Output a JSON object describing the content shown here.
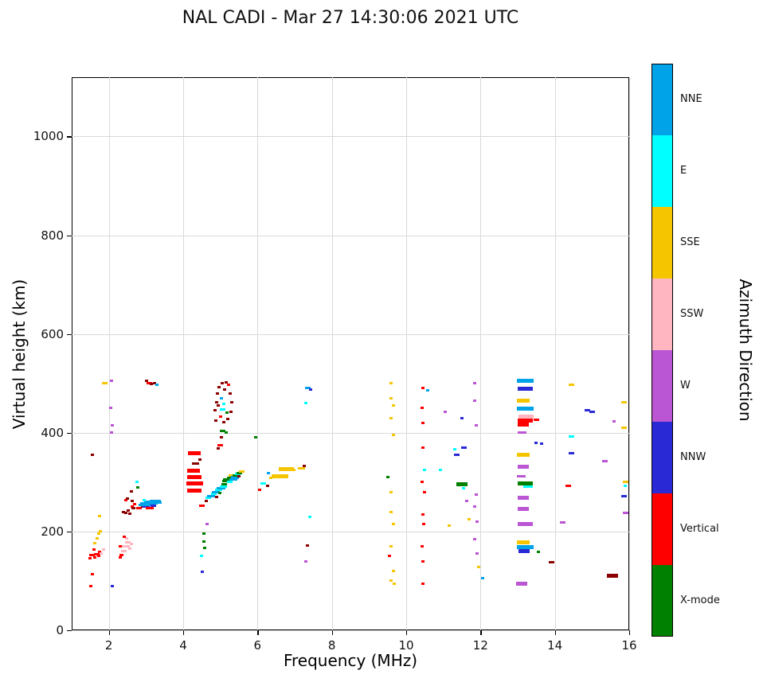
{
  "title": "NAL CADI - Mar 27 14:30:06 2021 UTC",
  "chart_data": {
    "type": "scatter",
    "title": "NAL CADI - Mar 27 14:30:06 2021 UTC",
    "xlabel": "Frequency (MHz)",
    "ylabel": "Virtual height (km)",
    "xlim": [
      1,
      16
    ],
    "ylim": [
      0,
      1120
    ],
    "x_ticks": [
      2,
      4,
      6,
      8,
      10,
      12,
      14,
      16
    ],
    "y_ticks": [
      0,
      200,
      400,
      600,
      800,
      1000
    ],
    "grid": true,
    "legend_position": "right-colorbar",
    "colorbar": {
      "label": "Azimuth Direction",
      "categories": [
        {
          "label": "NNE",
          "color": "#00a2e8"
        },
        {
          "label": "E",
          "color": "#00ffff"
        },
        {
          "label": "SSE",
          "color": "#f5c500"
        },
        {
          "label": "SSW",
          "color": "#ffb6c1"
        },
        {
          "label": "W",
          "color": "#ba55d3"
        },
        {
          "label": "NNW",
          "color": "#2929d6"
        },
        {
          "label": "Vertical",
          "color": "#ff0000"
        },
        {
          "label": "X-mode",
          "color": "#008000"
        }
      ]
    },
    "point_colors": {
      "NNE": "#00a2e8",
      "E": "#00ffff",
      "SSE": "#f5c500",
      "SSW": "#ffb6c1",
      "W": "#ba55d3",
      "NNW": "#2929d6",
      "V": "#ff0000",
      "X": "#008000",
      "DR": "#8b0000"
    },
    "points": [
      [
        1.52,
        90,
        "V"
      ],
      [
        1.56,
        113,
        "V"
      ],
      [
        1.5,
        146,
        "V"
      ],
      [
        1.55,
        152,
        "V",
        0.15
      ],
      [
        1.62,
        148,
        "V"
      ],
      [
        1.68,
        154,
        "V",
        0.15
      ],
      [
        1.75,
        158,
        "V"
      ],
      [
        1.6,
        163,
        "V"
      ],
      [
        1.72,
        150,
        "V"
      ],
      [
        1.8,
        156,
        "SSW"
      ],
      [
        1.86,
        164,
        "SSW"
      ],
      [
        1.62,
        176,
        "SSE"
      ],
      [
        1.68,
        186,
        "SSE"
      ],
      [
        1.73,
        196,
        "SSE"
      ],
      [
        1.78,
        201,
        "SSE"
      ],
      [
        1.75,
        231,
        "SSE"
      ],
      [
        1.55,
        355,
        "DR"
      ],
      [
        1.88,
        500,
        "SSE",
        0.15
      ],
      [
        2.08,
        505,
        "W"
      ],
      [
        2.05,
        450,
        "W"
      ],
      [
        2.1,
        415,
        "W"
      ],
      [
        2.07,
        400,
        "W"
      ],
      [
        2.1,
        90,
        "NNW"
      ],
      [
        2.3,
        148,
        "V"
      ],
      [
        2.34,
        153,
        "V"
      ],
      [
        2.3,
        170,
        "V"
      ],
      [
        2.4,
        160,
        "SSW",
        0.15
      ],
      [
        2.46,
        170,
        "SSW",
        0.2
      ],
      [
        2.52,
        178,
        "SSW",
        0.15
      ],
      [
        2.56,
        165,
        "SSW"
      ],
      [
        2.48,
        186,
        "SSW"
      ],
      [
        2.42,
        190,
        "V"
      ],
      [
        2.6,
        175,
        "SSW"
      ],
      [
        2.4,
        240,
        "DR"
      ],
      [
        2.45,
        237,
        "DR"
      ],
      [
        2.52,
        243,
        "DR"
      ],
      [
        2.57,
        236,
        "DR"
      ],
      [
        2.62,
        250,
        "V"
      ],
      [
        2.66,
        247,
        "DR"
      ],
      [
        2.45,
        263,
        "V"
      ],
      [
        2.5,
        267,
        "DR"
      ],
      [
        2.62,
        262,
        "DR"
      ],
      [
        2.7,
        255,
        "V"
      ],
      [
        2.6,
        282,
        "DR"
      ],
      [
        2.75,
        300,
        "E"
      ],
      [
        2.78,
        290,
        "X"
      ],
      [
        2.82,
        247,
        "V",
        0.15
      ],
      [
        2.9,
        250,
        "DR"
      ],
      [
        2.88,
        254,
        "NNE",
        0.15
      ],
      [
        2.95,
        257,
        "NNE",
        0.2
      ],
      [
        3.0,
        251,
        "NNW",
        0.2
      ],
      [
        3.05,
        255,
        "NNE",
        0.3
      ],
      [
        3.1,
        259,
        "NNE",
        0.3
      ],
      [
        3.18,
        257,
        "NNE",
        0.25
      ],
      [
        3.25,
        260,
        "NNE",
        0.3
      ],
      [
        3.32,
        258,
        "NNE",
        0.2
      ],
      [
        3.1,
        247,
        "V",
        0.2
      ],
      [
        3.2,
        252,
        "NNW",
        0.15
      ],
      [
        2.95,
        263,
        "E"
      ],
      [
        3.02,
        505,
        "DR"
      ],
      [
        3.08,
        500,
        "V",
        0.15
      ],
      [
        3.15,
        498,
        "DR"
      ],
      [
        3.22,
        500,
        "DR"
      ],
      [
        3.3,
        497,
        "NNE"
      ],
      [
        4.3,
        283,
        "V",
        0.4
      ],
      [
        4.32,
        297,
        "V",
        0.45
      ],
      [
        4.3,
        310,
        "V",
        0.4
      ],
      [
        4.28,
        323,
        "V",
        0.35
      ],
      [
        4.33,
        337,
        "DR",
        0.2
      ],
      [
        4.3,
        358,
        "V",
        0.35
      ],
      [
        4.45,
        345,
        "DR"
      ],
      [
        4.5,
        252,
        "V",
        0.15
      ],
      [
        4.62,
        262,
        "DR"
      ],
      [
        4.65,
        215,
        "W"
      ],
      [
        4.55,
        195,
        "X"
      ],
      [
        4.55,
        180,
        "X"
      ],
      [
        4.57,
        166,
        "X"
      ],
      [
        4.5,
        150,
        "E"
      ],
      [
        4.52,
        118,
        "NNW"
      ],
      [
        4.88,
        425,
        "DR"
      ],
      [
        4.85,
        445,
        "DR"
      ],
      [
        4.9,
        462,
        "DR"
      ],
      [
        4.92,
        480,
        "DR"
      ],
      [
        4.97,
        492,
        "DR"
      ],
      [
        5.05,
        500,
        "DR"
      ],
      [
        5.15,
        502,
        "DR"
      ],
      [
        5.22,
        497,
        "V"
      ],
      [
        5.27,
        480,
        "DR"
      ],
      [
        5.3,
        462,
        "DR"
      ],
      [
        5.28,
        443,
        "DR"
      ],
      [
        5.2,
        428,
        "DR"
      ],
      [
        5.1,
        421,
        "DR"
      ],
      [
        5.0,
        432,
        "V"
      ],
      [
        5.05,
        447,
        "E",
        0.15
      ],
      [
        5.1,
        458,
        "E"
      ],
      [
        5.02,
        470,
        "NNE"
      ],
      [
        5.18,
        440,
        "X"
      ],
      [
        4.95,
        455,
        "DR"
      ],
      [
        5.12,
        487,
        "DR"
      ],
      [
        5.05,
        403,
        "X",
        0.15
      ],
      [
        5.15,
        400,
        "X"
      ],
      [
        5.0,
        375,
        "V",
        0.15
      ],
      [
        4.95,
        368,
        "DR"
      ],
      [
        5.02,
        390,
        "DR"
      ],
      [
        4.68,
        268,
        "E",
        0.15
      ],
      [
        4.75,
        272,
        "NNE",
        0.2
      ],
      [
        4.82,
        276,
        "E",
        0.15
      ],
      [
        4.88,
        280,
        "NNE",
        0.2
      ],
      [
        4.95,
        284,
        "E",
        0.2
      ],
      [
        5.02,
        287,
        "NNE",
        0.25
      ],
      [
        5.08,
        291,
        "E",
        0.2
      ],
      [
        5.1,
        296,
        "X",
        0.15
      ],
      [
        5.15,
        302,
        "X",
        0.2
      ],
      [
        5.2,
        306,
        "X",
        0.25
      ],
      [
        5.27,
        309,
        "X",
        0.2
      ],
      [
        5.3,
        313,
        "SSE",
        0.15
      ],
      [
        5.35,
        311,
        "NNE",
        0.15
      ],
      [
        5.42,
        313,
        "X",
        0.2
      ],
      [
        5.47,
        316,
        "E",
        0.15
      ],
      [
        5.52,
        318,
        "X",
        0.15
      ],
      [
        5.57,
        321,
        "SSE",
        0.15
      ],
      [
        5.35,
        305,
        "NNE",
        0.2
      ],
      [
        5.25,
        300,
        "E",
        0.15
      ],
      [
        4.9,
        270,
        "DR"
      ],
      [
        4.98,
        278,
        "X"
      ],
      [
        5.45,
        308,
        "NNE"
      ],
      [
        5.5,
        312,
        "DR"
      ],
      [
        5.95,
        390,
        "X"
      ],
      [
        6.05,
        285,
        "V"
      ],
      [
        6.15,
        298,
        "E",
        0.15
      ],
      [
        6.3,
        318,
        "NNE"
      ],
      [
        6.35,
        308,
        "SSE"
      ],
      [
        6.28,
        292,
        "DR"
      ],
      [
        6.6,
        312,
        "SSE",
        0.45
      ],
      [
        6.78,
        327,
        "SSE",
        0.4
      ],
      [
        6.95,
        325,
        "SSE",
        0.15
      ],
      [
        7.18,
        328,
        "SSE",
        0.2
      ],
      [
        7.25,
        332,
        "DR"
      ],
      [
        7.35,
        491,
        "NNE",
        0.15
      ],
      [
        7.42,
        487,
        "NNW"
      ],
      [
        7.3,
        460,
        "E"
      ],
      [
        7.4,
        230,
        "E"
      ],
      [
        7.35,
        172,
        "DR"
      ],
      [
        7.3,
        140,
        "W"
      ],
      [
        9.6,
        500,
        "SSE"
      ],
      [
        9.6,
        470,
        "SSE"
      ],
      [
        9.65,
        455,
        "SSE"
      ],
      [
        9.6,
        430,
        "SSE"
      ],
      [
        9.65,
        395,
        "SSE"
      ],
      [
        9.5,
        310,
        "X"
      ],
      [
        9.6,
        280,
        "SSE"
      ],
      [
        9.6,
        240,
        "SSE"
      ],
      [
        9.65,
        215,
        "SSE"
      ],
      [
        9.6,
        170,
        "SSE"
      ],
      [
        9.55,
        150,
        "V"
      ],
      [
        9.65,
        120,
        "SSE"
      ],
      [
        9.6,
        100,
        "SSE"
      ],
      [
        9.68,
        95,
        "SSE"
      ],
      [
        10.45,
        490,
        "V"
      ],
      [
        10.58,
        486,
        "NNE"
      ],
      [
        10.42,
        450,
        "V"
      ],
      [
        10.45,
        420,
        "V"
      ],
      [
        10.45,
        370,
        "V"
      ],
      [
        10.5,
        325,
        "E"
      ],
      [
        10.42,
        300,
        "V"
      ],
      [
        10.5,
        280,
        "V"
      ],
      [
        10.45,
        235,
        "V"
      ],
      [
        10.48,
        215,
        "V"
      ],
      [
        10.42,
        170,
        "V"
      ],
      [
        10.45,
        140,
        "V"
      ],
      [
        10.45,
        95,
        "V"
      ],
      [
        10.92,
        325,
        "E"
      ],
      [
        11.05,
        443,
        "W"
      ],
      [
        11.15,
        212,
        "SSE"
      ],
      [
        11.3,
        367,
        "E"
      ],
      [
        11.35,
        355,
        "NNW",
        0.15
      ],
      [
        11.5,
        430,
        "NNW"
      ],
      [
        11.55,
        370,
        "NNW",
        0.15
      ],
      [
        11.5,
        295,
        "X",
        0.3
      ],
      [
        11.55,
        288,
        "E"
      ],
      [
        11.62,
        262,
        "W"
      ],
      [
        11.7,
        225,
        "SSE"
      ],
      [
        11.85,
        500,
        "W"
      ],
      [
        11.85,
        465,
        "W"
      ],
      [
        11.88,
        415,
        "W"
      ],
      [
        11.88,
        275,
        "W"
      ],
      [
        11.85,
        250,
        "W"
      ],
      [
        11.9,
        220,
        "W"
      ],
      [
        11.85,
        185,
        "W"
      ],
      [
        11.9,
        155,
        "W"
      ],
      [
        11.95,
        128,
        "SSE"
      ],
      [
        12.05,
        105,
        "NNE"
      ],
      [
        13.2,
        505,
        "NNE",
        0.45
      ],
      [
        13.2,
        489,
        "NNW",
        0.4
      ],
      [
        13.15,
        465,
        "SSE",
        0.35
      ],
      [
        13.2,
        449,
        "NNE",
        0.45
      ],
      [
        13.22,
        432,
        "SSW",
        0.4
      ],
      [
        13.2,
        424,
        "V",
        0.4
      ],
      [
        13.15,
        417,
        "V",
        0.3
      ],
      [
        13.5,
        427,
        "V",
        0.15
      ],
      [
        13.12,
        400,
        "W",
        0.25
      ],
      [
        13.5,
        380,
        "NNW"
      ],
      [
        13.15,
        355,
        "SSE",
        0.35
      ],
      [
        13.15,
        331,
        "W",
        0.3
      ],
      [
        13.1,
        312,
        "W",
        0.25
      ],
      [
        13.2,
        297,
        "X",
        0.4
      ],
      [
        13.28,
        291,
        "E",
        0.25
      ],
      [
        13.15,
        268,
        "W",
        0.3
      ],
      [
        13.15,
        245,
        "W",
        0.3
      ],
      [
        13.2,
        215,
        "W",
        0.4
      ],
      [
        13.15,
        178,
        "SSE",
        0.35
      ],
      [
        13.2,
        168,
        "NNE",
        0.45
      ],
      [
        13.18,
        161,
        "NNW",
        0.3
      ],
      [
        13.1,
        95,
        "W",
        0.3
      ],
      [
        13.55,
        158,
        "X"
      ],
      [
        13.65,
        378,
        "NNW"
      ],
      [
        13.9,
        138,
        "DR",
        0.15
      ],
      [
        14.2,
        218,
        "W",
        0.15
      ],
      [
        14.35,
        292,
        "V",
        0.15
      ],
      [
        14.45,
        358,
        "NNW",
        0.15
      ],
      [
        14.45,
        393,
        "E",
        0.15
      ],
      [
        14.45,
        497,
        "SSE",
        0.15
      ],
      [
        14.88,
        445,
        "NNW",
        0.15
      ],
      [
        15.0,
        443,
        "NNW",
        0.15
      ],
      [
        15.35,
        343,
        "W",
        0.15
      ],
      [
        15.55,
        110,
        "DR",
        0.3
      ],
      [
        15.6,
        423,
        "W"
      ],
      [
        15.85,
        462,
        "SSE",
        0.15
      ],
      [
        15.85,
        410,
        "SSE",
        0.15
      ],
      [
        15.9,
        300,
        "SSE",
        0.15
      ],
      [
        15.9,
        292,
        "E"
      ],
      [
        15.85,
        272,
        "NNW",
        0.15
      ],
      [
        15.9,
        237,
        "W",
        0.15
      ]
    ]
  }
}
